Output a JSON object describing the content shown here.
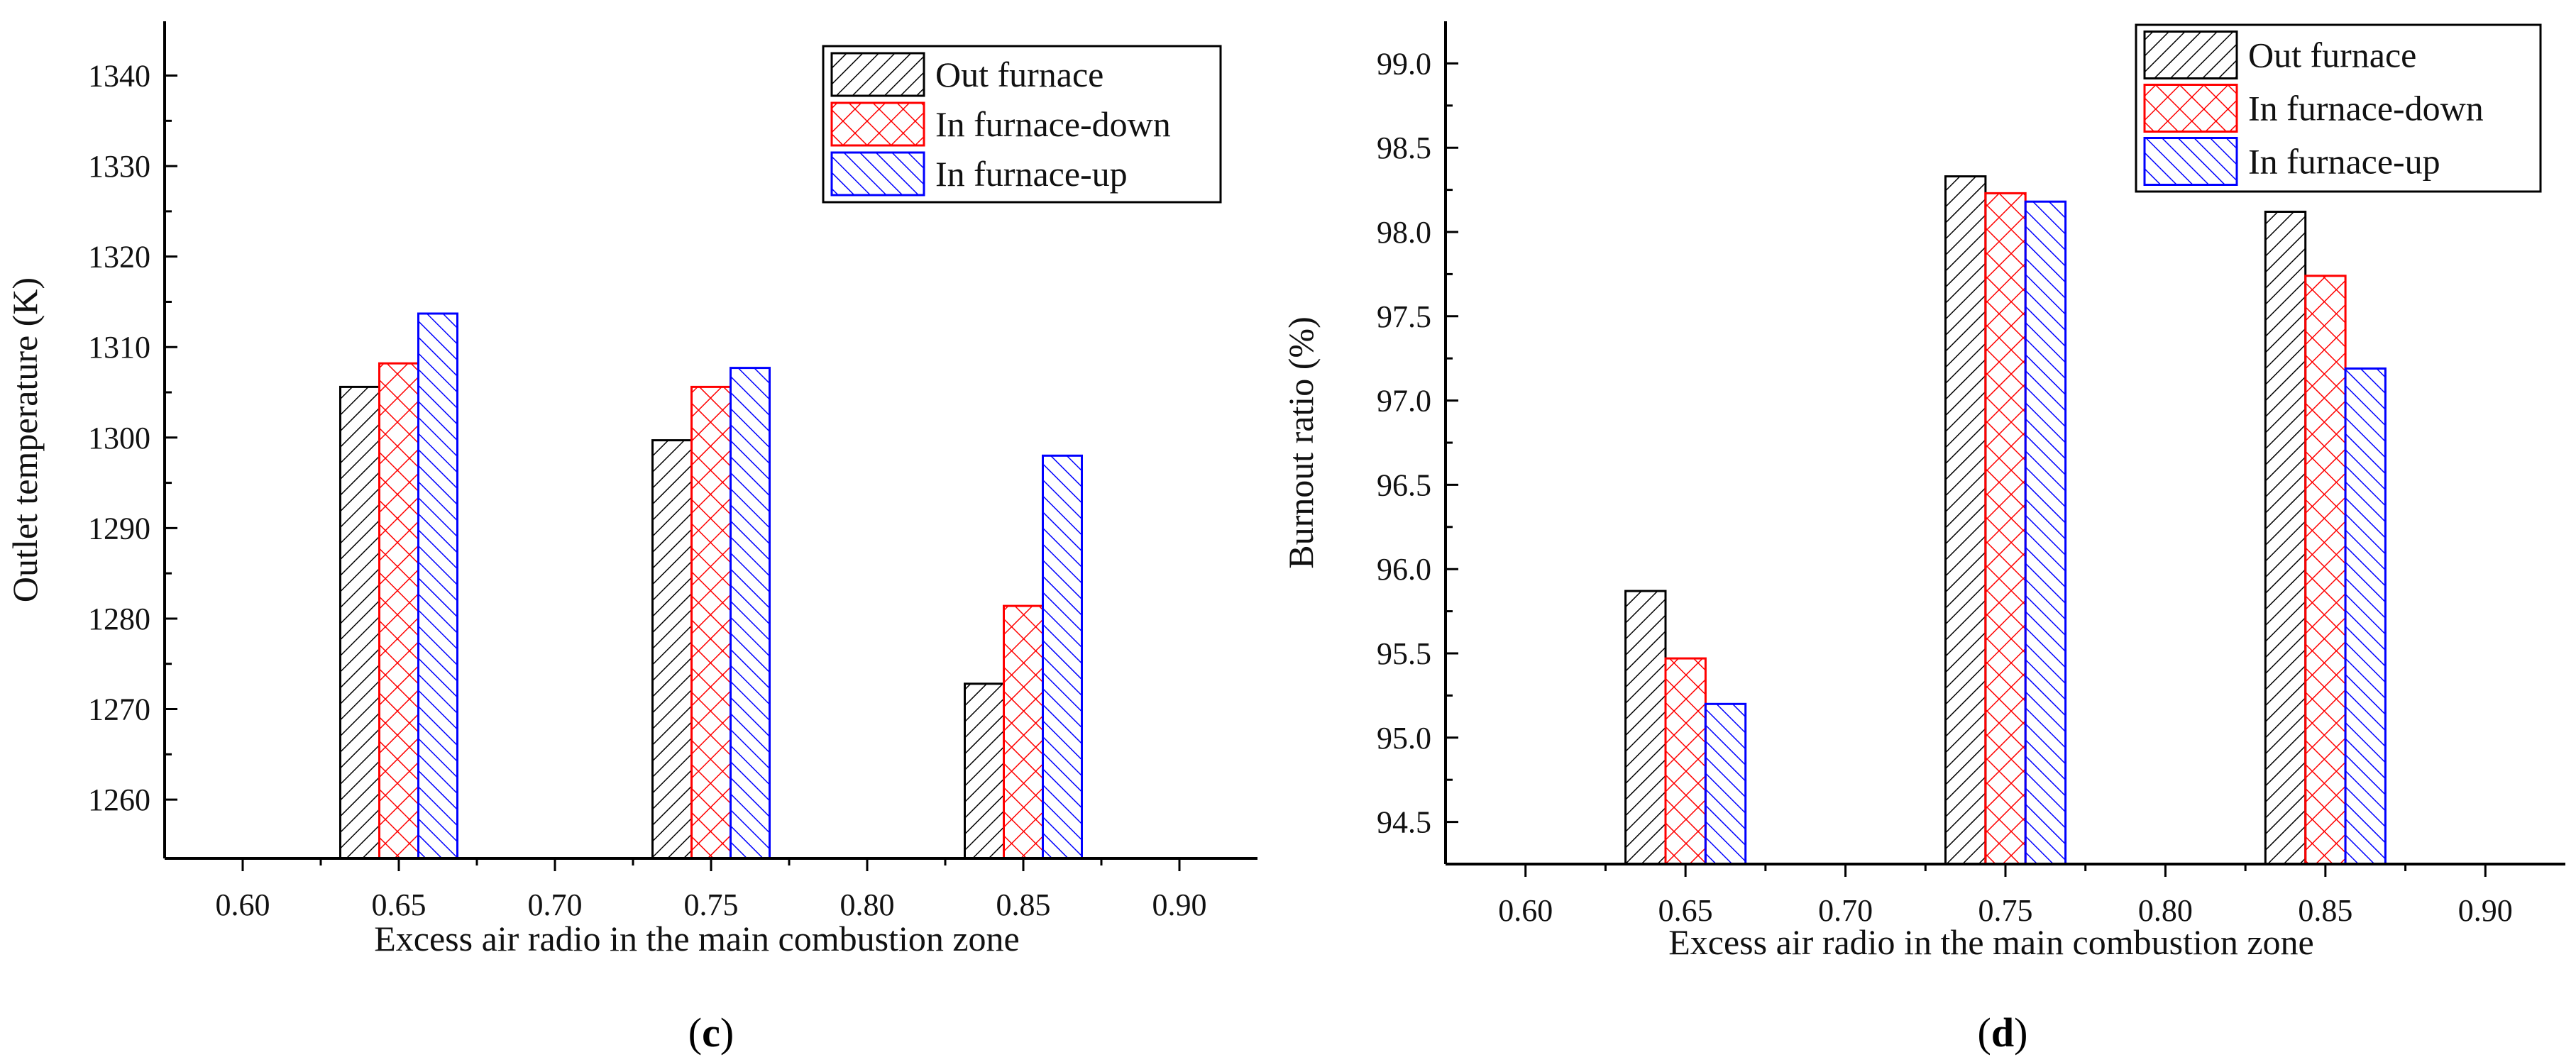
{
  "colors": {
    "out_furnace": "#000000",
    "in_furnace_down": "#ff0000",
    "in_furnace_up": "#0000ff",
    "axis": "#000000"
  },
  "chart_data": [
    {
      "type": "bar",
      "panel": "(c)",
      "panel_letter": "c",
      "title": "",
      "xlabel": "Excess air radio in the main combustion zone",
      "ylabel": "Outlet temperature (K)",
      "x_ticks": [
        "0.60",
        "0.65",
        "0.70",
        "0.75",
        "0.80",
        "0.85",
        "0.90"
      ],
      "y_ticks": [
        "1260",
        "1270",
        "1280",
        "1290",
        "1300",
        "1310",
        "1320",
        "1330",
        "1340"
      ],
      "xlim": [
        0.575,
        0.925
      ],
      "ylim": [
        1253.5,
        1346
      ],
      "categories": [
        0.65,
        0.75,
        0.85
      ],
      "series": [
        {
          "name": "Out furnace",
          "pattern": "hatch-diag",
          "values": [
            1305.6,
            1299.7,
            1272.8
          ]
        },
        {
          "name": "In furnace-down",
          "pattern": "hatch-cross",
          "values": [
            1308.2,
            1305.6,
            1281.4
          ]
        },
        {
          "name": "In furnace-up",
          "pattern": "hatch-back",
          "values": [
            1313.7,
            1307.7,
            1298.0
          ]
        }
      ],
      "legend": "top-right",
      "grid": false
    },
    {
      "type": "bar",
      "panel": "(d)",
      "panel_letter": "d",
      "title": "",
      "xlabel": "Excess air radio in the main combustion zone",
      "ylabel": "Burnout ratio (%)",
      "x_ticks": [
        "0.60",
        "0.65",
        "0.70",
        "0.75",
        "0.80",
        "0.85",
        "0.90"
      ],
      "y_ticks": [
        "94.5",
        "95.0",
        "95.5",
        "96.0",
        "96.5",
        "97.0",
        "97.5",
        "98.0",
        "98.5",
        "99.0"
      ],
      "xlim": [
        0.575,
        0.925
      ],
      "ylim": [
        94.25,
        99.25
      ],
      "categories": [
        0.65,
        0.75,
        0.85
      ],
      "series": [
        {
          "name": "Out furnace",
          "pattern": "hatch-diag",
          "values": [
            95.87,
            98.33,
            98.12
          ]
        },
        {
          "name": "In furnace-down",
          "pattern": "hatch-cross",
          "values": [
            95.47,
            98.23,
            97.74
          ]
        },
        {
          "name": "In furnace-up",
          "pattern": "hatch-back",
          "values": [
            95.2,
            98.18,
            97.19
          ]
        }
      ],
      "legend": "top-right",
      "grid": false
    }
  ]
}
